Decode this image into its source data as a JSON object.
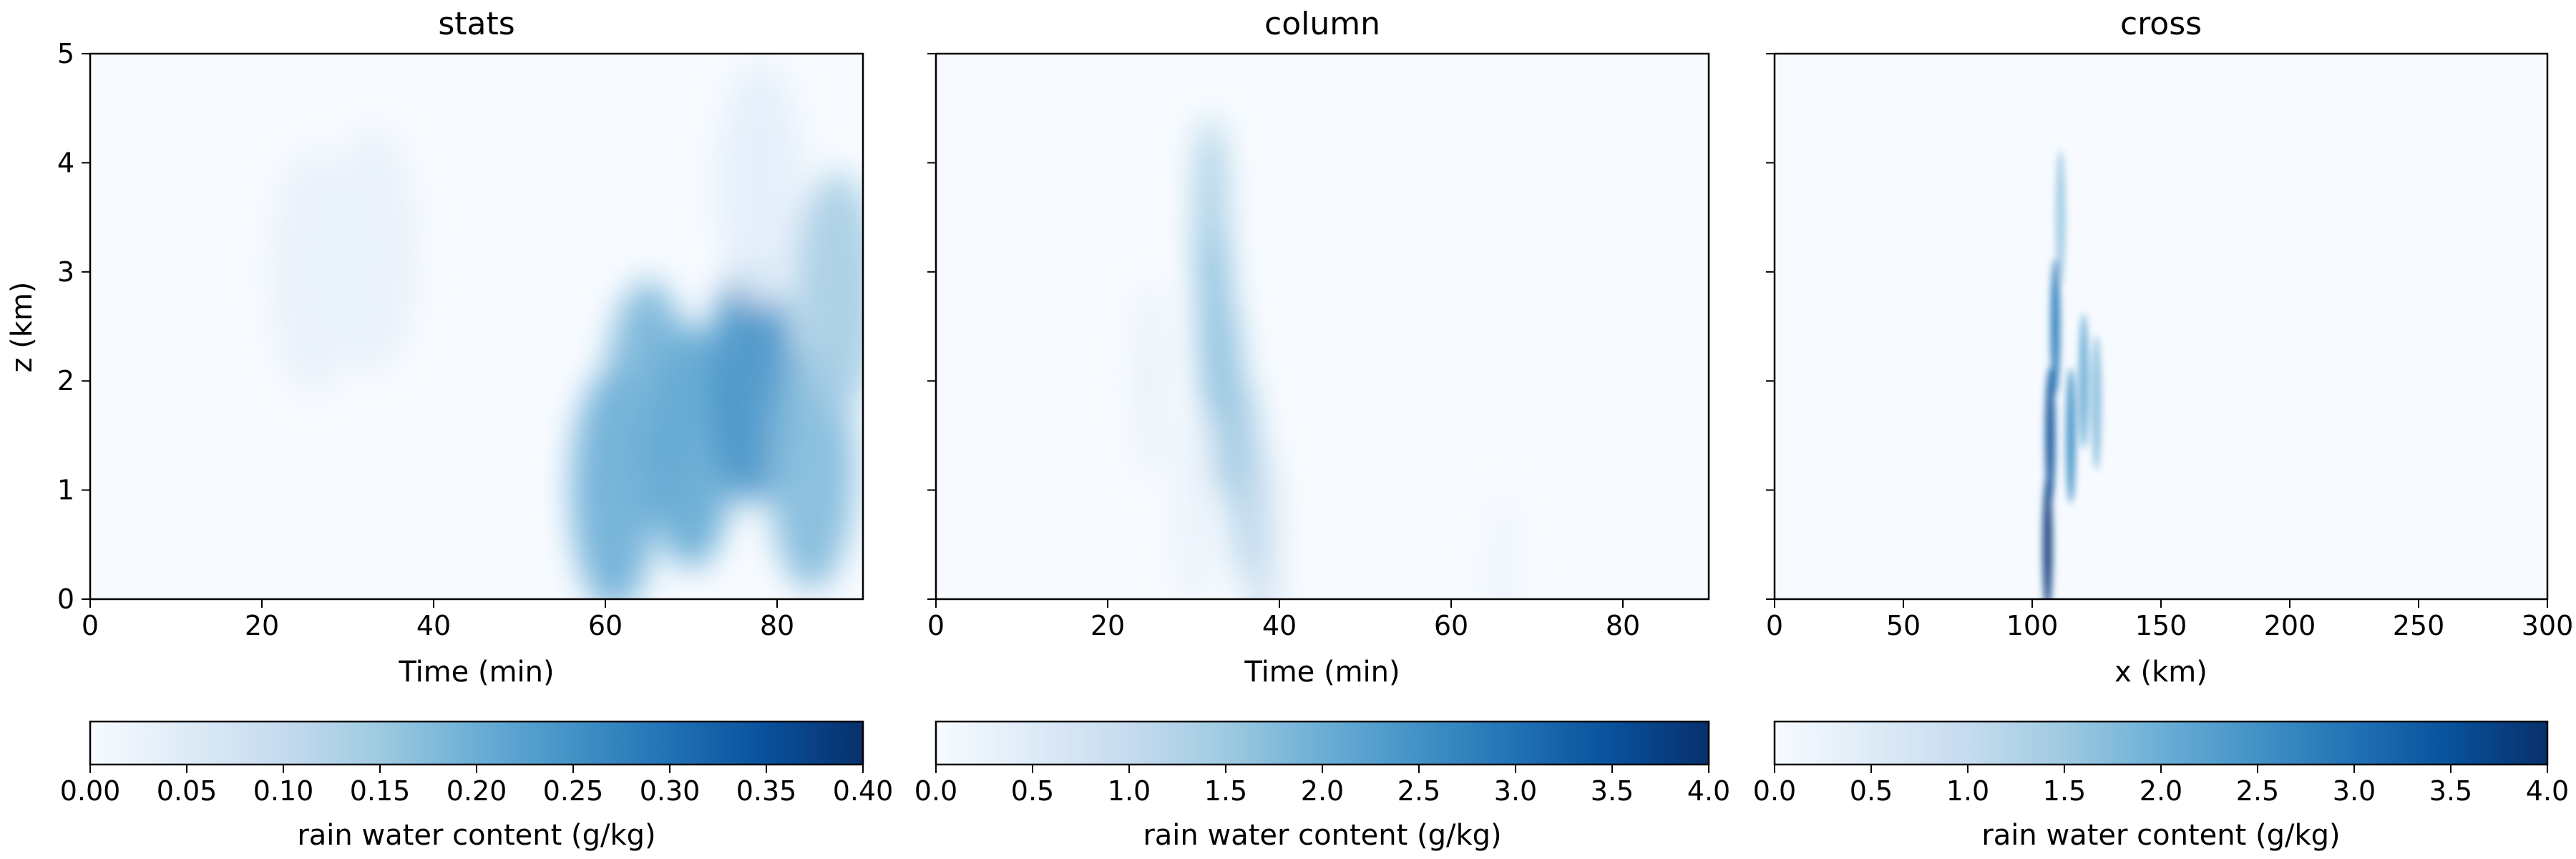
{
  "chart_data": [
    {
      "type": "heatmap",
      "title": "stats",
      "xlabel": "Time (min)",
      "ylabel": "z (km)",
      "xlim": [
        0,
        90
      ],
      "ylim": [
        0,
        5
      ],
      "xticks": [
        "0",
        "20",
        "40",
        "60",
        "80"
      ],
      "yticks": [
        "0",
        "1",
        "2",
        "3",
        "4",
        "5"
      ],
      "colormap": "Blues",
      "colorbar": {
        "label": "rain water content (g/kg)",
        "range": [
          0,
          0.4
        ],
        "ticks": [
          "0.00",
          "0.05",
          "0.10",
          "0.15",
          "0.20",
          "0.25",
          "0.30",
          "0.35",
          "0.40"
        ]
      },
      "features": [
        {
          "x": 26,
          "z": 3.0,
          "value": 0.03
        },
        {
          "x": 33,
          "z": 3.2,
          "value": 0.03
        },
        {
          "x": 61,
          "z": 1.0,
          "value": 0.2
        },
        {
          "x": 65,
          "z": 1.8,
          "value": 0.19
        },
        {
          "x": 70,
          "z": 1.4,
          "value": 0.21
        },
        {
          "x": 77,
          "z": 2.0,
          "value": 0.25
        },
        {
          "x": 84,
          "z": 1.2,
          "value": 0.18
        },
        {
          "x": 78,
          "z": 3.8,
          "value": 0.04
        },
        {
          "x": 87,
          "z": 2.8,
          "value": 0.14
        }
      ]
    },
    {
      "type": "heatmap",
      "title": "column",
      "xlabel": "Time (min)",
      "ylabel": "",
      "xlim": [
        0,
        90
      ],
      "ylim": [
        0,
        5
      ],
      "xticks": [
        "0",
        "20",
        "40",
        "60",
        "80"
      ],
      "colormap": "Blues",
      "colorbar": {
        "label": "rain water content (g/kg)",
        "range": [
          0,
          4.0
        ],
        "ticks": [
          "0.0",
          "0.5",
          "1.0",
          "1.5",
          "2.0",
          "2.5",
          "3.0",
          "3.5",
          "4.0"
        ]
      },
      "features": [
        {
          "x": 32,
          "z": 3.5,
          "value": 1.5
        },
        {
          "x": 32.5,
          "z": 2.5,
          "value": 1.8
        },
        {
          "x": 34,
          "z": 1.8,
          "value": 1.6
        },
        {
          "x": 36,
          "z": 1.1,
          "value": 1.4
        },
        {
          "x": 38,
          "z": 0.5,
          "value": 0.9
        },
        {
          "x": 25,
          "z": 2.0,
          "value": 0.3
        },
        {
          "x": 30,
          "z": 0.8,
          "value": 0.3
        },
        {
          "x": 66,
          "z": 0.1,
          "value": 0.2
        }
      ]
    },
    {
      "type": "heatmap",
      "title": "cross",
      "xlabel": "x (km)",
      "ylabel": "",
      "xlim": [
        0,
        300
      ],
      "ylim": [
        0,
        5
      ],
      "xticks": [
        "0",
        "50",
        "100",
        "150",
        "200",
        "250",
        "300"
      ],
      "colormap": "Blues",
      "colorbar": {
        "label": "rain water content (g/kg)",
        "range": [
          0,
          4.0
        ],
        "ticks": [
          "0.0",
          "0.5",
          "1.0",
          "1.5",
          "2.0",
          "2.5",
          "3.0",
          "3.5",
          "4.0"
        ]
      },
      "features": [
        {
          "x": 106,
          "z": 0.5,
          "value": 3.8
        },
        {
          "x": 107,
          "z": 1.5,
          "value": 3.5
        },
        {
          "x": 109,
          "z": 2.5,
          "value": 2.8
        },
        {
          "x": 111,
          "z": 3.5,
          "value": 1.5
        },
        {
          "x": 115,
          "z": 1.5,
          "value": 2.5
        },
        {
          "x": 120,
          "z": 2.0,
          "value": 2.0
        },
        {
          "x": 125,
          "z": 1.8,
          "value": 1.7
        }
      ]
    }
  ]
}
